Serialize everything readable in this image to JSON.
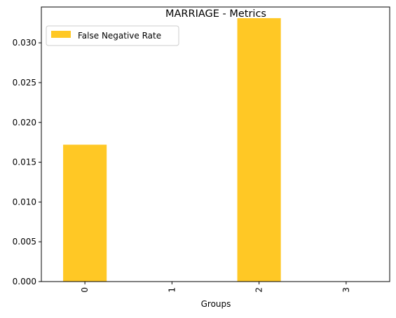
{
  "chart_data": {
    "type": "bar",
    "title": "MARRIAGE - Metrics",
    "xlabel": "Groups",
    "ylabel": "",
    "categories": [
      "0",
      "1",
      "2",
      "3"
    ],
    "series": [
      {
        "name": "False Negative Rate",
        "values": [
          0.0172,
          0.0,
          0.0331,
          0.0
        ],
        "color": "#ffc825"
      }
    ],
    "ylim": [
      0,
      0.0345
    ],
    "yticks": [
      0.0,
      0.005,
      0.01,
      0.015,
      0.02,
      0.025,
      0.03
    ],
    "ytick_labels": [
      "0.000",
      "0.005",
      "0.010",
      "0.015",
      "0.020",
      "0.025",
      "0.030"
    ],
    "grid": false,
    "legend": "top-left"
  }
}
